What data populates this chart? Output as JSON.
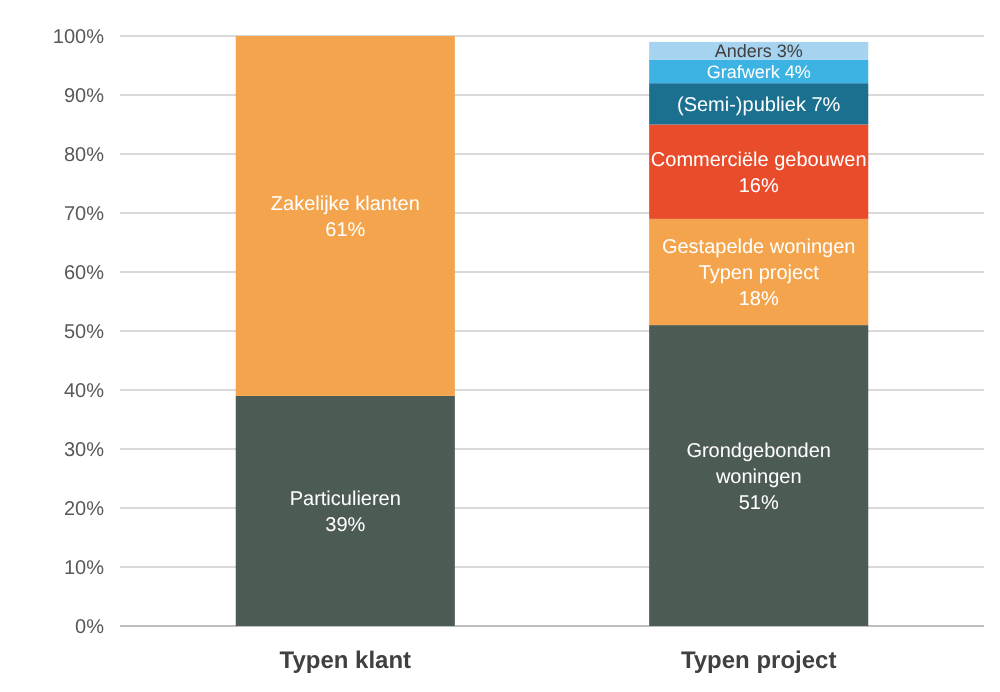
{
  "chart_data": {
    "type": "bar",
    "stacked": true,
    "categories": [
      "Typen klant",
      "Typen project"
    ],
    "ylim": [
      0,
      100
    ],
    "yticks": [
      {
        "value": 0,
        "label": "0%"
      },
      {
        "value": 10,
        "label": "10%"
      },
      {
        "value": 20,
        "label": "20%"
      },
      {
        "value": 30,
        "label": "30%"
      },
      {
        "value": 40,
        "label": "40%"
      },
      {
        "value": 50,
        "label": "50%"
      },
      {
        "value": 60,
        "label": "60%"
      },
      {
        "value": 70,
        "label": "70%"
      },
      {
        "value": 80,
        "label": "80%"
      },
      {
        "value": 90,
        "label": "90%"
      },
      {
        "value": 100,
        "label": "100%"
      }
    ],
    "grid": "y",
    "legend": false,
    "series": [
      {
        "name": "Particulieren",
        "color": "#4d5b55",
        "values": [
          39,
          null
        ],
        "value_labels": [
          "39%",
          null
        ]
      },
      {
        "name": "Zakelijke klanten",
        "color": "#f4a44c",
        "values": [
          61,
          null
        ],
        "value_labels": [
          "61%",
          null
        ]
      },
      {
        "name": "Grondgebonden woningen",
        "color": "#4d5b55",
        "values": [
          null,
          51
        ],
        "value_labels": [
          null,
          "51%"
        ]
      },
      {
        "name": "Gestapelde woningen Typen project",
        "color": "#f4a44c",
        "values": [
          null,
          18
        ],
        "value_labels": [
          null,
          "18%"
        ]
      },
      {
        "name": "Commerciële gebouwen",
        "color": "#e84c2b",
        "values": [
          null,
          16
        ],
        "value_labels": [
          null,
          "16%"
        ]
      },
      {
        "name": "(Semi-)publiek",
        "color": "#1b6f8f",
        "values": [
          null,
          7
        ],
        "value_labels": [
          null,
          "7%"
        ]
      },
      {
        "name": "Grafwerk",
        "color": "#3db3e3",
        "values": [
          null,
          4
        ],
        "value_labels": [
          null,
          "4%"
        ]
      },
      {
        "name": "Anders",
        "color": "#a6d3ef",
        "values": [
          null,
          3
        ],
        "value_labels": [
          null,
          "3%"
        ]
      }
    ]
  }
}
